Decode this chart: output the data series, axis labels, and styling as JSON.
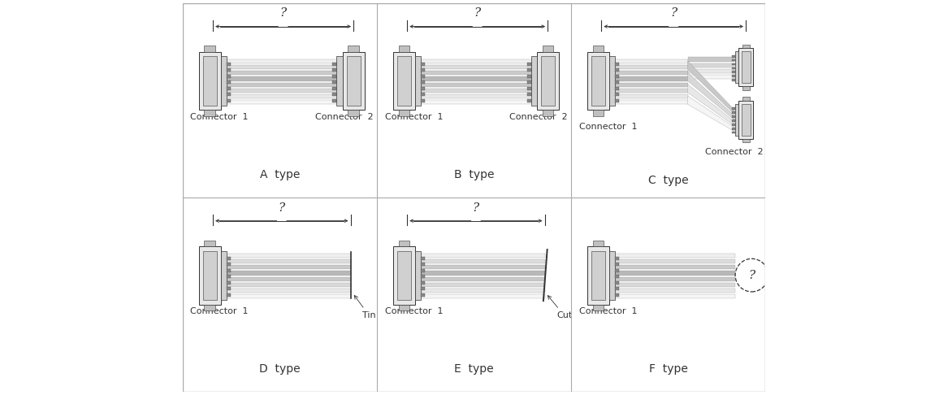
{
  "fig_width": 11.67,
  "fig_height": 4.86,
  "dpi": 100,
  "bg_color": "#ffffff",
  "lc": "#333333",
  "grid_color": "#aaaaaa",
  "panels": [
    {
      "name": "A  type",
      "col": 0,
      "row": 1,
      "type": "straight",
      "c1": "Connector  1",
      "c2": "Connector  2"
    },
    {
      "name": "B  type",
      "col": 1,
      "row": 1,
      "type": "straight",
      "c1": "Connector  1",
      "c2": "Connector  2"
    },
    {
      "name": "C  type",
      "col": 2,
      "row": 1,
      "type": "split",
      "c1": "Connector  1",
      "c2": "Connector  2"
    },
    {
      "name": "D  type",
      "col": 0,
      "row": 0,
      "type": "tin",
      "c1": "Connector  1",
      "c2": null
    },
    {
      "name": "E  type",
      "col": 1,
      "row": 0,
      "type": "cut",
      "c1": "Connector  1",
      "c2": null
    },
    {
      "name": "F  type",
      "col": 2,
      "row": 0,
      "type": "circle",
      "c1": "Connector  1",
      "c2": null
    }
  ],
  "cable_grays": [
    "#f5f5f5",
    "#e8e8e8",
    "#d8d8d8",
    "#c8c8c8",
    "#b8b8b8",
    "#cacaca",
    "#dcdcdc",
    "#efefef"
  ],
  "conn_body_fill": "#e8e8e8",
  "conn_pin_fill": "#d0d0d0",
  "conn_tooth_fill": "#888888"
}
